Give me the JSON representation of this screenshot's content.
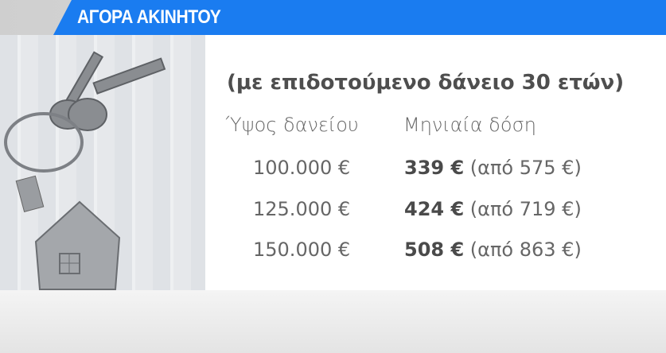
{
  "banner": {
    "title": "ΑΓΟΡΑ ΑΚΙΝΗΤΟΥ",
    "color": "#1a7cf0"
  },
  "subtitle": "(με επιδοτούμενο δάνειο 30 ετών)",
  "table": {
    "headers": [
      "Ύψος δανείου",
      "Μηνιαία δόση"
    ],
    "rows": [
      {
        "loan": "100.000 €",
        "installment": "339 €",
        "previous": "(από 575 €)"
      },
      {
        "loan": "125.000 €",
        "installment": "424 €",
        "previous": "(από 719 €)"
      },
      {
        "loan": "150.000 €",
        "installment": "508 €",
        "previous": "(από 863 €)"
      }
    ]
  },
  "image": {
    "icon": "house-keychain-keys-photo"
  }
}
